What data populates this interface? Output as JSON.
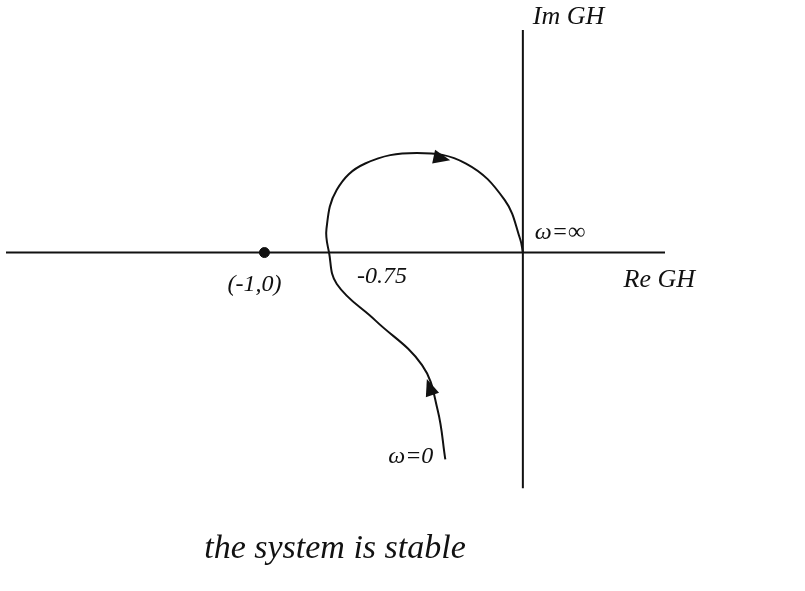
{
  "chart_data": {
    "type": "line",
    "title": "the system is stable",
    "xlabel": "Re GH",
    "ylabel": "Im GH",
    "x": [
      -0.3,
      -0.33,
      -0.39,
      -0.57,
      -0.72,
      -0.75,
      -0.76,
      -0.72,
      -0.61,
      -0.41,
      -0.22,
      -0.07,
      -0.01,
      0
    ],
    "values": [
      -0.79,
      -0.6,
      -0.43,
      -0.26,
      -0.12,
      0,
      0.09,
      0.24,
      0.34,
      0.38,
      0.34,
      0.2,
      0.05,
      0
    ],
    "color": "#111111",
    "line_style": "solid",
    "xlim": [
      -2,
      0.55
    ],
    "ylim": [
      -0.9,
      0.85
    ],
    "grid": false,
    "tick_labels": false,
    "points": [
      {
        "x": -1,
        "y": 0,
        "label": "(-1,0)",
        "marker": "circle"
      }
    ],
    "annotations": [
      {
        "text": "-0.75",
        "x": -0.75,
        "y": 0
      },
      {
        "text": "ω=∞",
        "x": 0,
        "y": 0
      },
      {
        "text": "ω=0",
        "x": -0.3,
        "y": -0.79
      }
    ]
  }
}
